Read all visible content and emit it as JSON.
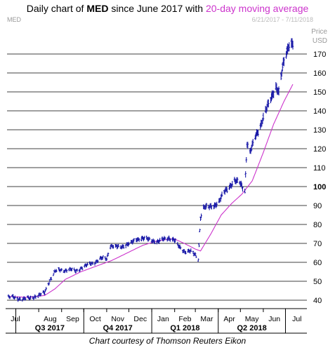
{
  "header": {
    "title_prefix": "Daily chart of ",
    "ticker": "MED",
    "title_mid": " since June 2017 with ",
    "ma_label": "20-day moving average",
    "symbol_label": "MED",
    "date_range": "6/21/2017 - 7/11/2018",
    "price_label": "Price",
    "currency_label": "USD"
  },
  "footer": {
    "credit": "Chart courtesy of Thomson Reuters Eikon"
  },
  "colors": {
    "price_bars": "#1a1aa8",
    "moving_average": "#cc33cc",
    "title_accent": "#cc33cc",
    "gridline": "#000000"
  },
  "chart_data": {
    "type": "line",
    "title": "Daily chart of MED since June 2017 with 20-day moving average",
    "ylabel": "Price USD",
    "ylim": [
      36,
      180
    ],
    "y_ticks": [
      40,
      50,
      60,
      70,
      80,
      90,
      100,
      110,
      120,
      130,
      140,
      150,
      160,
      170
    ],
    "y_ticks_bold": [
      100
    ],
    "grid": true,
    "x_months": [
      "Jul",
      "Aug",
      "Sep",
      "Oct",
      "Nov",
      "Dec",
      "Jan",
      "Feb",
      "Mar",
      "Apr",
      "May",
      "Jun",
      "Jul"
    ],
    "x_quarters": [
      "Q3 2017",
      "Q4 2017",
      "Q1 2018",
      "Q2 2018"
    ],
    "date_range": [
      "2017-06-21",
      "2018-07-11"
    ],
    "series": [
      {
        "name": "MED",
        "style": "ohlc-bars",
        "points": [
          [
            "2017-06-21",
            41.5
          ],
          [
            "2017-06-28",
            41.5
          ],
          [
            "2017-07-05",
            41
          ],
          [
            "2017-07-12",
            40.5
          ],
          [
            "2017-07-19",
            41
          ],
          [
            "2017-07-26",
            42
          ],
          [
            "2017-08-02",
            42.5
          ],
          [
            "2017-08-09",
            44
          ],
          [
            "2017-08-14",
            49
          ],
          [
            "2017-08-18",
            52
          ],
          [
            "2017-08-23",
            55
          ],
          [
            "2017-08-30",
            56
          ],
          [
            "2017-09-06",
            56
          ],
          [
            "2017-09-13",
            56
          ],
          [
            "2017-09-20",
            55.5
          ],
          [
            "2017-09-27",
            57
          ],
          [
            "2017-10-04",
            58
          ],
          [
            "2017-10-11",
            59.5
          ],
          [
            "2017-10-18",
            60.5
          ],
          [
            "2017-10-25",
            62
          ],
          [
            "2017-11-01",
            62
          ],
          [
            "2017-11-06",
            69
          ],
          [
            "2017-11-13",
            68
          ],
          [
            "2017-11-20",
            68
          ],
          [
            "2017-11-27",
            69.5
          ],
          [
            "2017-12-04",
            70
          ],
          [
            "2017-12-11",
            72
          ],
          [
            "2017-12-18",
            73
          ],
          [
            "2017-12-27",
            72
          ],
          [
            "2018-01-03",
            71.5
          ],
          [
            "2018-01-10",
            71
          ],
          [
            "2018-01-17",
            72
          ],
          [
            "2018-01-24",
            73
          ],
          [
            "2018-01-31",
            72
          ],
          [
            "2018-02-07",
            68
          ],
          [
            "2018-02-14",
            66
          ],
          [
            "2018-02-21",
            66
          ],
          [
            "2018-02-28",
            64
          ],
          [
            "2018-03-05",
            62
          ],
          [
            "2018-03-08",
            84
          ],
          [
            "2018-03-12",
            89
          ],
          [
            "2018-03-19",
            89
          ],
          [
            "2018-03-26",
            90
          ],
          [
            "2018-04-02",
            92
          ],
          [
            "2018-04-09",
            97
          ],
          [
            "2018-04-16",
            100
          ],
          [
            "2018-04-23",
            103
          ],
          [
            "2018-04-30",
            102
          ],
          [
            "2018-05-07",
            98
          ],
          [
            "2018-05-10",
            123
          ],
          [
            "2018-05-14",
            118
          ],
          [
            "2018-05-21",
            126
          ],
          [
            "2018-05-28",
            132
          ],
          [
            "2018-06-04",
            140
          ],
          [
            "2018-06-11",
            146
          ],
          [
            "2018-06-18",
            153
          ],
          [
            "2018-06-22",
            150
          ],
          [
            "2018-06-27",
            163
          ],
          [
            "2018-07-02",
            170
          ],
          [
            "2018-07-06",
            175
          ],
          [
            "2018-07-11",
            176
          ]
        ]
      },
      {
        "name": "20-day moving average",
        "style": "line",
        "points": [
          [
            "2017-06-21",
            42
          ],
          [
            "2017-07-19",
            41.5
          ],
          [
            "2017-08-09",
            42.5
          ],
          [
            "2017-08-23",
            46
          ],
          [
            "2017-09-06",
            51
          ],
          [
            "2017-09-27",
            55
          ],
          [
            "2017-10-18",
            58
          ],
          [
            "2017-11-08",
            61
          ],
          [
            "2017-11-29",
            65
          ],
          [
            "2017-12-20",
            69
          ],
          [
            "2018-01-10",
            71.5
          ],
          [
            "2018-01-31",
            72.5
          ],
          [
            "2018-02-14",
            70
          ],
          [
            "2018-03-01",
            67
          ],
          [
            "2018-03-08",
            66
          ],
          [
            "2018-03-22",
            75
          ],
          [
            "2018-04-05",
            85
          ],
          [
            "2018-04-19",
            91
          ],
          [
            "2018-05-03",
            96
          ],
          [
            "2018-05-17",
            103
          ],
          [
            "2018-06-01",
            118
          ],
          [
            "2018-06-15",
            133
          ],
          [
            "2018-06-29",
            145
          ],
          [
            "2018-07-11",
            154
          ]
        ]
      }
    ]
  }
}
